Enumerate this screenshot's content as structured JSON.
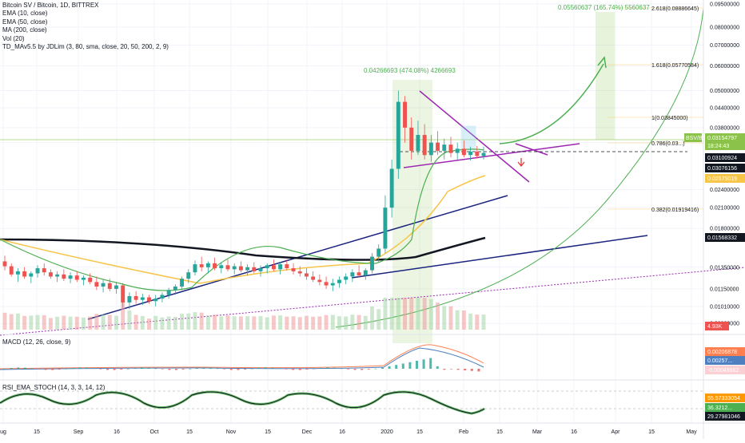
{
  "header": {
    "symbol_line": "Bitcoin SV / Bitcoin, 1D, BITTREX",
    "indicators": [
      "EMA (10, close)",
      "EMA (50, close)",
      "MA (200, close)",
      "Vol (20)",
      "TD_MAv5.5 by JDLim (3, 80, sma, close, 20, 50, 200, 2, 9)"
    ]
  },
  "macd_label": "MACD (12, 26, close, 9)",
  "rsi_label": "RSI_EMA_STOCH (14, 3, 3, 14, 12)",
  "chart_data": {
    "type": "candlestick",
    "annotations": {
      "target_measure": "0.05560637 (165.74%) 5560637",
      "first_measure": "0.04266693 (474.08%) 4266693"
    },
    "price_axis_ticks": [
      "0.09500000",
      "0.08000000",
      "0.07000000",
      "0.06000000",
      "0.05000000",
      "0.04400000",
      "0.03800000",
      "0.03400000",
      "0.02400000",
      "0.02100000",
      "0.01800000",
      "0.01350000",
      "0.01150000",
      "0.01010000",
      "0.00890000"
    ],
    "fib_levels": [
      {
        "label": "2.618(0.08886645)",
        "price": 0.0888
      },
      {
        "label": "1.618(0.05770584)",
        "price": 0.0577
      },
      {
        "label": "1(0.03845000)",
        "price": 0.03845
      },
      {
        "label": "0.786(0.03...)",
        "price": 0.0318
      },
      {
        "label": "0.382(0.01919416)",
        "price": 0.01919
      }
    ],
    "price_tags": [
      {
        "label": "BSV/BTC",
        "value": "0.03154797",
        "color": "#8bc34a"
      },
      {
        "label": "",
        "value": "18:24:43",
        "color": "#8bc34a"
      },
      {
        "label": "",
        "value": "0.03100924",
        "color": "#131722"
      },
      {
        "label": "",
        "value": "0.03076156",
        "color": "#131722"
      },
      {
        "label": "",
        "value": "0.02575019",
        "color": "#f7c548"
      },
      {
        "label": "",
        "value": "0.01568332",
        "color": "#131722"
      }
    ],
    "volume_tag": "4.93K",
    "macd": {
      "tags": [
        {
          "value": "0.00206878",
          "color": "#ff7f50"
        },
        {
          "value": "0.00257...",
          "color": "#4f7fbf"
        },
        {
          "value": "-0.00049982",
          "color": "#fbd0d5"
        }
      ]
    },
    "rsi": {
      "tags": [
        {
          "value": "59.57212559",
          "color": "#ffffff"
        },
        {
          "value": "55.57333054",
          "color": "#ff9800"
        },
        {
          "value": "36.3212...",
          "color": "#4caf50"
        },
        {
          "value": "29.27981046",
          "color": "#131722"
        }
      ]
    },
    "x_ticks": [
      "ug",
      "15",
      "Sep",
      "16",
      "Oct",
      "15",
      "Nov",
      "15",
      "Dec",
      "16",
      "2020",
      "15",
      "Feb",
      "15",
      "Mar",
      "16",
      "Apr",
      "15",
      "May"
    ],
    "candles": [
      {
        "o": 0.0141,
        "h": 0.0147,
        "l": 0.0132,
        "c": 0.0136
      },
      {
        "o": 0.0136,
        "h": 0.0139,
        "l": 0.0126,
        "c": 0.0128
      },
      {
        "o": 0.0128,
        "h": 0.0134,
        "l": 0.0121,
        "c": 0.0131
      },
      {
        "o": 0.0131,
        "h": 0.0135,
        "l": 0.0124,
        "c": 0.0126
      },
      {
        "o": 0.0126,
        "h": 0.0131,
        "l": 0.012,
        "c": 0.0129
      },
      {
        "o": 0.0129,
        "h": 0.0137,
        "l": 0.0125,
        "c": 0.0134
      },
      {
        "o": 0.0134,
        "h": 0.0139,
        "l": 0.0127,
        "c": 0.013
      },
      {
        "o": 0.013,
        "h": 0.0133,
        "l": 0.0124,
        "c": 0.0126
      },
      {
        "o": 0.0126,
        "h": 0.0131,
        "l": 0.0121,
        "c": 0.0128
      },
      {
        "o": 0.0128,
        "h": 0.0133,
        "l": 0.0122,
        "c": 0.0124
      },
      {
        "o": 0.0124,
        "h": 0.013,
        "l": 0.012,
        "c": 0.0127
      },
      {
        "o": 0.0127,
        "h": 0.0131,
        "l": 0.0121,
        "c": 0.0123
      },
      {
        "o": 0.0123,
        "h": 0.0127,
        "l": 0.0118,
        "c": 0.0125
      },
      {
        "o": 0.0125,
        "h": 0.0129,
        "l": 0.0119,
        "c": 0.0121
      },
      {
        "o": 0.0121,
        "h": 0.0126,
        "l": 0.0114,
        "c": 0.0117
      },
      {
        "o": 0.0117,
        "h": 0.0123,
        "l": 0.0112,
        "c": 0.012
      },
      {
        "o": 0.012,
        "h": 0.0124,
        "l": 0.0113,
        "c": 0.0115
      },
      {
        "o": 0.0115,
        "h": 0.0121,
        "l": 0.0111,
        "c": 0.0118
      },
      {
        "o": 0.0118,
        "h": 0.012,
        "l": 0.01,
        "c": 0.0104
      },
      {
        "o": 0.0104,
        "h": 0.0112,
        "l": 0.0099,
        "c": 0.0109
      },
      {
        "o": 0.0109,
        "h": 0.0113,
        "l": 0.0103,
        "c": 0.0106
      },
      {
        "o": 0.0106,
        "h": 0.0111,
        "l": 0.0102,
        "c": 0.0108
      },
      {
        "o": 0.0108,
        "h": 0.011,
        "l": 0.0103,
        "c": 0.0105
      },
      {
        "o": 0.0105,
        "h": 0.011,
        "l": 0.0101,
        "c": 0.0107
      },
      {
        "o": 0.0107,
        "h": 0.0112,
        "l": 0.0104,
        "c": 0.011
      },
      {
        "o": 0.011,
        "h": 0.0116,
        "l": 0.0107,
        "c": 0.0114
      },
      {
        "o": 0.0114,
        "h": 0.0119,
        "l": 0.011,
        "c": 0.0117
      },
      {
        "o": 0.0117,
        "h": 0.0126,
        "l": 0.0114,
        "c": 0.0124
      },
      {
        "o": 0.0124,
        "h": 0.0133,
        "l": 0.012,
        "c": 0.013
      },
      {
        "o": 0.013,
        "h": 0.0142,
        "l": 0.0127,
        "c": 0.0138
      },
      {
        "o": 0.0138,
        "h": 0.0146,
        "l": 0.0131,
        "c": 0.0135
      },
      {
        "o": 0.0135,
        "h": 0.0141,
        "l": 0.0129,
        "c": 0.0139
      },
      {
        "o": 0.0139,
        "h": 0.0145,
        "l": 0.0132,
        "c": 0.0134
      },
      {
        "o": 0.0134,
        "h": 0.014,
        "l": 0.0129,
        "c": 0.0137
      },
      {
        "o": 0.0137,
        "h": 0.0143,
        "l": 0.0131,
        "c": 0.0133
      },
      {
        "o": 0.0133,
        "h": 0.0139,
        "l": 0.0128,
        "c": 0.0136
      },
      {
        "o": 0.0136,
        "h": 0.0141,
        "l": 0.013,
        "c": 0.0132
      },
      {
        "o": 0.0132,
        "h": 0.0138,
        "l": 0.0127,
        "c": 0.0135
      },
      {
        "o": 0.0135,
        "h": 0.014,
        "l": 0.0129,
        "c": 0.0131
      },
      {
        "o": 0.0131,
        "h": 0.0137,
        "l": 0.0126,
        "c": 0.0134
      },
      {
        "o": 0.0134,
        "h": 0.0139,
        "l": 0.0129,
        "c": 0.0137
      },
      {
        "o": 0.0137,
        "h": 0.0143,
        "l": 0.0131,
        "c": 0.0133
      },
      {
        "o": 0.0133,
        "h": 0.014,
        "l": 0.0128,
        "c": 0.0138
      },
      {
        "o": 0.0138,
        "h": 0.0143,
        "l": 0.0132,
        "c": 0.0134
      },
      {
        "o": 0.0134,
        "h": 0.0139,
        "l": 0.0128,
        "c": 0.0131
      },
      {
        "o": 0.0131,
        "h": 0.0136,
        "l": 0.0126,
        "c": 0.0129
      },
      {
        "o": 0.0129,
        "h": 0.0134,
        "l": 0.0123,
        "c": 0.0126
      },
      {
        "o": 0.0126,
        "h": 0.0131,
        "l": 0.0121,
        "c": 0.0123
      },
      {
        "o": 0.0123,
        "h": 0.0128,
        "l": 0.0118,
        "c": 0.0121
      },
      {
        "o": 0.0121,
        "h": 0.0126,
        "l": 0.0115,
        "c": 0.0118
      },
      {
        "o": 0.0118,
        "h": 0.0124,
        "l": 0.0113,
        "c": 0.012
      },
      {
        "o": 0.012,
        "h": 0.0126,
        "l": 0.0116,
        "c": 0.0123
      },
      {
        "o": 0.0123,
        "h": 0.0129,
        "l": 0.0119,
        "c": 0.0126
      },
      {
        "o": 0.0126,
        "h": 0.0133,
        "l": 0.0121,
        "c": 0.013
      },
      {
        "o": 0.013,
        "h": 0.0137,
        "l": 0.0125,
        "c": 0.0127
      },
      {
        "o": 0.0127,
        "h": 0.0134,
        "l": 0.0123,
        "c": 0.0132
      },
      {
        "o": 0.0132,
        "h": 0.015,
        "l": 0.0129,
        "c": 0.0146
      },
      {
        "o": 0.0146,
        "h": 0.016,
        "l": 0.014,
        "c": 0.0155
      },
      {
        "o": 0.0155,
        "h": 0.023,
        "l": 0.015,
        "c": 0.021
      },
      {
        "o": 0.021,
        "h": 0.03,
        "l": 0.0195,
        "c": 0.028
      },
      {
        "o": 0.028,
        "h": 0.05,
        "l": 0.026,
        "c": 0.046
      },
      {
        "o": 0.046,
        "h": 0.048,
        "l": 0.034,
        "c": 0.038
      },
      {
        "o": 0.038,
        "h": 0.041,
        "l": 0.03,
        "c": 0.032
      },
      {
        "o": 0.032,
        "h": 0.04,
        "l": 0.031,
        "c": 0.036
      },
      {
        "o": 0.036,
        "h": 0.039,
        "l": 0.03,
        "c": 0.031
      },
      {
        "o": 0.031,
        "h": 0.036,
        "l": 0.0295,
        "c": 0.034
      },
      {
        "o": 0.034,
        "h": 0.037,
        "l": 0.031,
        "c": 0.032
      },
      {
        "o": 0.032,
        "h": 0.035,
        "l": 0.03,
        "c": 0.0335
      },
      {
        "o": 0.0335,
        "h": 0.0355,
        "l": 0.0305,
        "c": 0.0315
      },
      {
        "o": 0.0315,
        "h": 0.034,
        "l": 0.03,
        "c": 0.0325
      },
      {
        "o": 0.0325,
        "h": 0.0345,
        "l": 0.0305,
        "c": 0.031
      },
      {
        "o": 0.031,
        "h": 0.033,
        "l": 0.0298,
        "c": 0.0318
      },
      {
        "o": 0.0318,
        "h": 0.0332,
        "l": 0.0302,
        "c": 0.0308
      },
      {
        "o": 0.0308,
        "h": 0.033,
        "l": 0.03,
        "c": 0.0315
      }
    ]
  }
}
